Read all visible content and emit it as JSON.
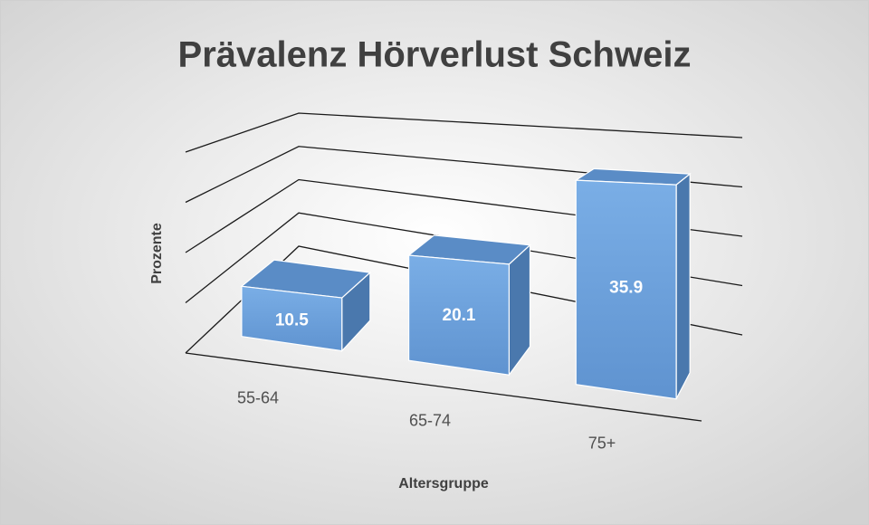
{
  "chart_data": {
    "type": "bar3d",
    "title": "Prävalenz Hörverlust Schweiz",
    "x_label": "Altersgruppe",
    "y_label": "Prozente",
    "categories": [
      "55-64",
      "65-74",
      "75+"
    ],
    "values": [
      10.5,
      20.1,
      35.9
    ],
    "color": "#6a9fd8",
    "ylim": [
      0,
      40
    ],
    "yticks": [
      0,
      10,
      20,
      30,
      40
    ],
    "grid": true
  }
}
